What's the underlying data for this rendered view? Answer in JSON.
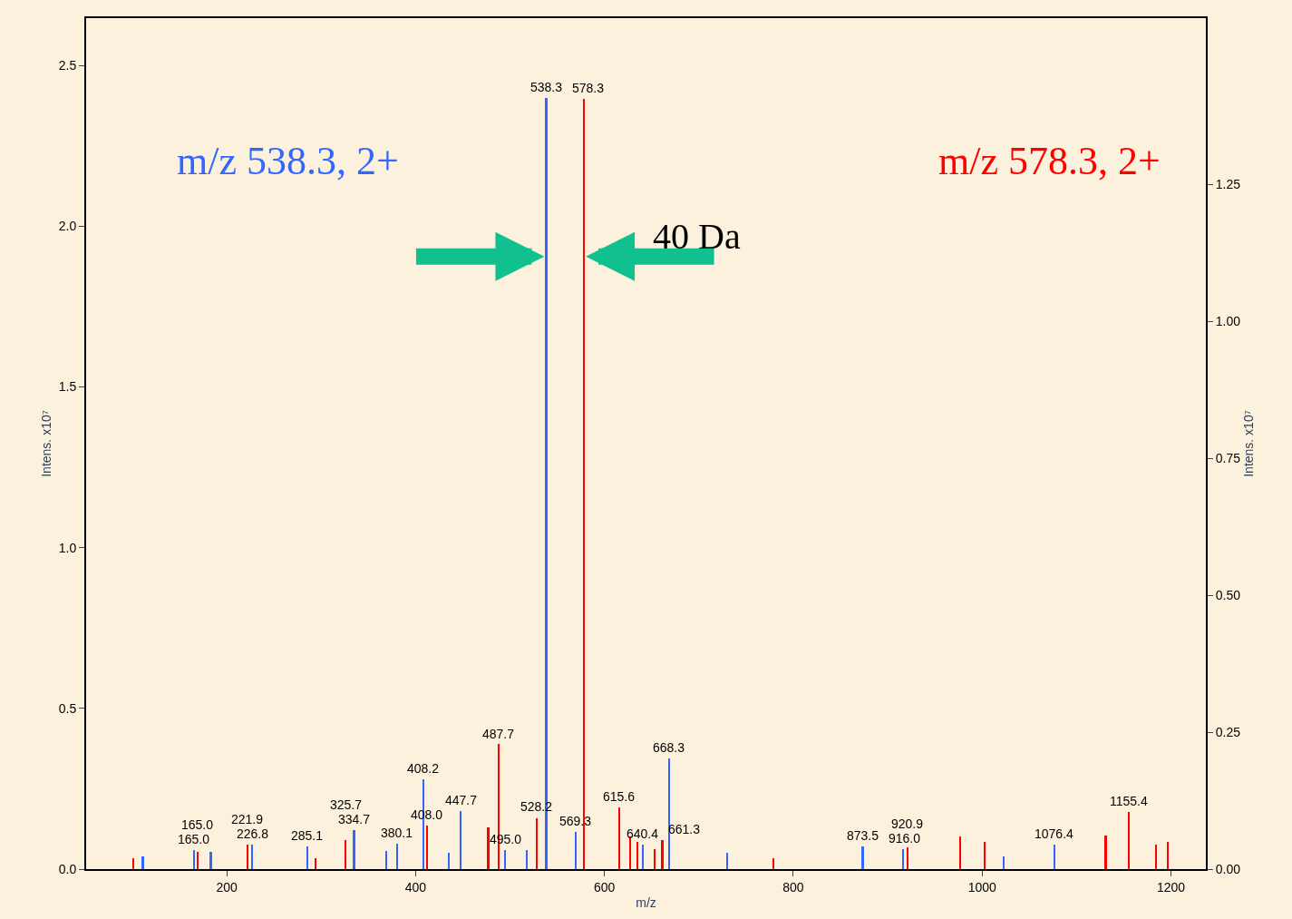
{
  "chart_data": {
    "type": "bar",
    "xlabel": "m/z",
    "ylabel": "Intens. x10⁷",
    "y2label": "Intens. x10⁷",
    "xlim": [
      51,
      1237
    ],
    "xticks": [
      200,
      400,
      600,
      800,
      1000,
      1200
    ],
    "ylim": [
      0,
      2.647
    ],
    "yticks": [
      {
        "value": 0,
        "label": "0.0"
      },
      {
        "value": 0.5,
        "label": "0.5"
      },
      {
        "value": 1,
        "label": "1.0"
      },
      {
        "value": 1.5,
        "label": "1.5"
      },
      {
        "value": 2,
        "label": "2.0"
      },
      {
        "value": 2.5,
        "label": "2.5"
      }
    ],
    "y2lim": [
      0,
      1.554
    ],
    "y2ticks": [
      {
        "value": 0,
        "label": "0.00"
      },
      {
        "value": 0.25,
        "label": "0.25"
      },
      {
        "value": 0.5,
        "label": "0.50"
      },
      {
        "value": 0.75,
        "label": "0.75"
      },
      {
        "value": 1,
        "label": "1.00"
      },
      {
        "value": 1.25,
        "label": "1.25"
      }
    ],
    "grid": false,
    "series": [
      {
        "color": "#3366ff",
        "x": [
          111,
          165.0,
          183,
          226.8,
          285.1,
          334.7,
          369,
          380.1,
          408.2,
          435,
          447.7,
          495.0,
          518,
          538.3,
          569.3,
          640.4,
          668.3,
          730,
          873.5,
          916.0,
          1023,
          1076.4
        ],
        "values": [
          0.04,
          0.06,
          0.054,
          0.075,
          0.07,
          0.12,
          0.057,
          0.08,
          0.28,
          0.05,
          0.182,
          0.06,
          0.06,
          2.4,
          0.117,
          0.076,
          0.343,
          0.05,
          0.07,
          0.063,
          0.04,
          0.076
        ]
      },
      {
        "color": "#ff0000",
        "axis": "y2",
        "x": [
          101,
          169,
          221.9,
          294,
          325.7,
          412,
          477,
          487.7,
          528.2,
          578.3,
          615.6,
          627,
          635,
          653,
          661.3,
          779,
          920.9,
          977,
          1003,
          1131,
          1155.4,
          1184,
          1197
        ],
        "values": [
          0.02,
          0.032,
          0.045,
          0.02,
          0.053,
          0.08,
          0.077,
          0.228,
          0.093,
          1.406,
          0.112,
          0.06,
          0.05,
          0.037,
          0.053,
          0.02,
          0.04,
          0.06,
          0.05,
          0.061,
          0.104,
          0.045,
          0.05
        ]
      }
    ],
    "annotations": [
      "m/z 538.3, 2+",
      "m/z 578.3, 2+",
      "40 Da",
      {
        "text": "165.0",
        "x": 165.0,
        "y": 0.06
      },
      {
        "text": "226.8",
        "x": 226.8,
        "y": 0.075
      },
      {
        "text": "285.1",
        "x": 285.1,
        "y": 0.07
      },
      {
        "text": "334.7",
        "x": 334.7,
        "y": 0.12
      },
      {
        "text": "380.1",
        "x": 380.1,
        "y": 0.08
      },
      {
        "text": "408.2",
        "x": 408.2,
        "y": 0.28
      },
      {
        "text": "447.7",
        "x": 447.7,
        "y": 0.182
      },
      {
        "text": "495.0",
        "x": 495.0,
        "y": 0.06
      },
      {
        "text": "538.3",
        "x": 538.3,
        "y": 2.4
      },
      {
        "text": "569.3",
        "x": 569.3,
        "y": 0.117
      },
      {
        "text": "640.4",
        "x": 640.4,
        "y": 0.076
      },
      {
        "text": "668.3",
        "x": 668.3,
        "y": 0.343
      },
      {
        "text": "873.5",
        "x": 873.5,
        "y": 0.07
      },
      {
        "text": "916.0",
        "x": 916.0,
        "y": 0.063
      },
      {
        "text": "1076.4",
        "x": 1076.4,
        "y": 0.076
      },
      {
        "text": "165.0",
        "x": 169,
        "y": 0.055
      },
      {
        "text": "221.9",
        "x": 221.9,
        "y": 0.077
      },
      {
        "text": "325.7",
        "x": 325.7,
        "y": 0.09
      },
      {
        "text": "408.0",
        "x": 412,
        "y": 0.136
      },
      {
        "text": "487.7",
        "x": 487.7,
        "y": 0.388
      },
      {
        "text": "528.2",
        "x": 528.2,
        "y": 0.158
      },
      {
        "text": "578.3",
        "x": 578.3,
        "y": 2.395
      },
      {
        "text": "615.6",
        "x": 615.6,
        "y": 0.191
      },
      {
        "text": "661.3",
        "x": 661.3,
        "y": 0.09
      },
      {
        "text": "920.9",
        "x": 920.9,
        "y": 0.068
      },
      {
        "text": "1155.4",
        "x": 1155.4,
        "y": 0.177
      }
    ]
  }
}
